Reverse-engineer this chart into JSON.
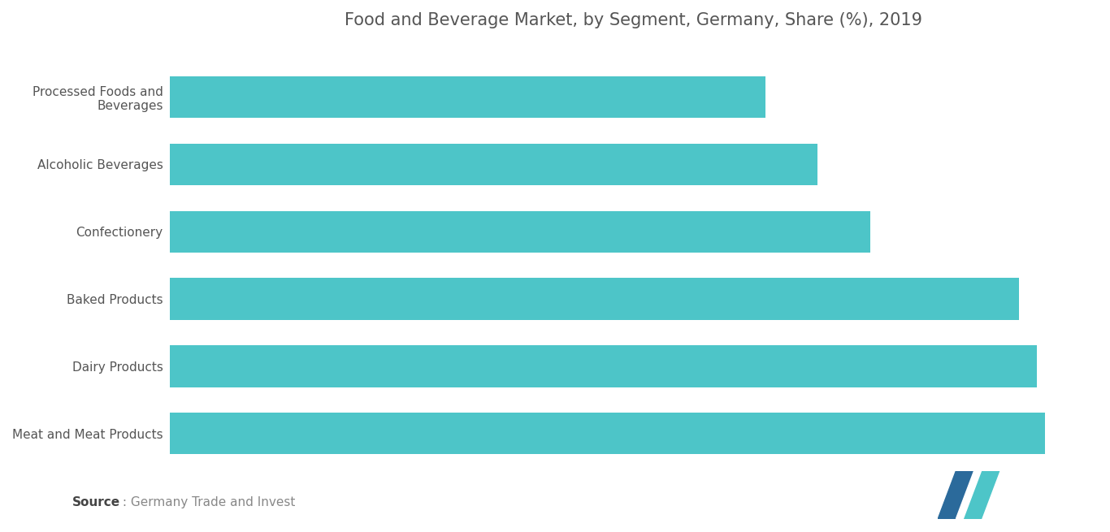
{
  "title": "Food and Beverage Market, by Segment, Germany, Share (%), 2019",
  "categories": [
    "Meat and Meat Products",
    "Dairy Products",
    "Baked Products",
    "Confectionery",
    "Alcoholic Beverages",
    "Processed Foods and\nBeverages"
  ],
  "values": [
    100,
    99,
    97,
    80,
    74,
    68
  ],
  "bar_color": "#4DC5C8",
  "background_color": "#ffffff",
  "label_color": "#555555",
  "title_color": "#555555",
  "source_bold": "Source",
  "source_rest": " : Germany Trade and Invest",
  "title_fontsize": 15,
  "label_fontsize": 11,
  "source_fontsize": 11,
  "logo_left_color": "#2B6A9B",
  "logo_right_color": "#4DC5C8"
}
